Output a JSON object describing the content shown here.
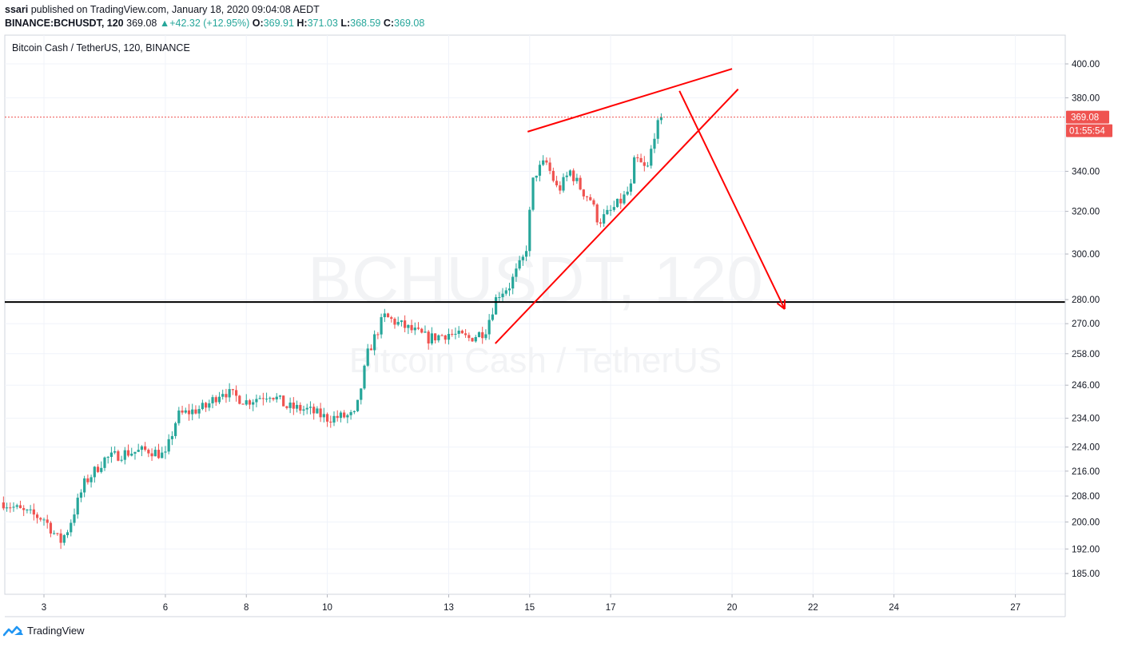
{
  "header": {
    "author": "ssari",
    "published_text": "published on TradingView.com, January 18, 2020 09:04:08 AEDT",
    "symbol_line": "BINANCE:BCHUSDT, 120",
    "last": "369.08",
    "change_arrow": "▲",
    "change": "+42.32 (+12.95%)",
    "o_label": "O:",
    "o_value": "369.91",
    "h_label": "H:",
    "h_value": "371.03",
    "l_label": "L:",
    "l_value": "368.59",
    "c_label": "C:",
    "c_value": "369.08"
  },
  "chart_title": "Bitcoin Cash / TetherUS, 120, BINANCE",
  "watermark": {
    "line1": "BCHUSDT, 120",
    "line2": "Bitcoin Cash / TetherUS"
  },
  "footer": {
    "brand": "TradingView",
    "logo_icon": "tradingview-logo-icon"
  },
  "colors": {
    "up": "#26a69a",
    "down": "#ef5350",
    "drawing": "#ff0000",
    "support": "#000000",
    "price_tag": "#ef5350"
  },
  "chart_data": {
    "type": "candlestick",
    "y_scale": "log",
    "ylim": [
      180,
      410
    ],
    "price_ticks": [
      "400.00",
      "380.00",
      "340.00",
      "320.00",
      "300.00",
      "280.00",
      "270.00",
      "258.00",
      "246.00",
      "234.00",
      "224.00",
      "216.00",
      "208.00",
      "200.00",
      "192.00",
      "185.00"
    ],
    "time_ticks": [
      {
        "day": 3,
        "label": "3"
      },
      {
        "day": 6,
        "label": "6"
      },
      {
        "day": 8,
        "label": "8"
      },
      {
        "day": 10,
        "label": "10"
      },
      {
        "day": 13,
        "label": "13"
      },
      {
        "day": 15,
        "label": "15"
      },
      {
        "day": 17,
        "label": "17"
      },
      {
        "day": 20,
        "label": "20"
      },
      {
        "day": 22,
        "label": "22"
      },
      {
        "day": 24,
        "label": "24"
      },
      {
        "day": 27,
        "label": "27"
      }
    ],
    "current_price": {
      "value": 369.08,
      "label": "369.08",
      "countdown": "01:55:54"
    },
    "support_level": 279,
    "anchors": [
      {
        "day": 2.0,
        "price": 206
      },
      {
        "day": 2.5,
        "price": 203
      },
      {
        "day": 3.0,
        "price": 201
      },
      {
        "day": 3.4,
        "price": 194
      },
      {
        "day": 3.6,
        "price": 198
      },
      {
        "day": 4.0,
        "price": 212
      },
      {
        "day": 4.5,
        "price": 220
      },
      {
        "day": 5.0,
        "price": 222
      },
      {
        "day": 5.6,
        "price": 223
      },
      {
        "day": 6.0,
        "price": 221
      },
      {
        "day": 6.3,
        "price": 235
      },
      {
        "day": 7.0,
        "price": 238
      },
      {
        "day": 7.4,
        "price": 244
      },
      {
        "day": 8.0,
        "price": 240
      },
      {
        "day": 8.6,
        "price": 243
      },
      {
        "day": 9.0,
        "price": 238
      },
      {
        "day": 9.5,
        "price": 237
      },
      {
        "day": 10.0,
        "price": 234
      },
      {
        "day": 10.7,
        "price": 235
      },
      {
        "day": 11.0,
        "price": 258
      },
      {
        "day": 11.4,
        "price": 273
      },
      {
        "day": 12.0,
        "price": 268
      },
      {
        "day": 12.5,
        "price": 264
      },
      {
        "day": 13.0,
        "price": 266
      },
      {
        "day": 13.5,
        "price": 264
      },
      {
        "day": 13.9,
        "price": 267
      },
      {
        "day": 14.2,
        "price": 282
      },
      {
        "day": 14.5,
        "price": 286
      },
      {
        "day": 14.9,
        "price": 300
      },
      {
        "day": 15.1,
        "price": 338
      },
      {
        "day": 15.4,
        "price": 345
      },
      {
        "day": 15.7,
        "price": 330
      },
      {
        "day": 16.0,
        "price": 340
      },
      {
        "day": 16.3,
        "price": 330
      },
      {
        "day": 16.5,
        "price": 326
      },
      {
        "day": 16.7,
        "price": 315
      },
      {
        "day": 17.0,
        "price": 320
      },
      {
        "day": 17.3,
        "price": 326
      },
      {
        "day": 17.5,
        "price": 332
      },
      {
        "day": 17.6,
        "price": 347
      },
      {
        "day": 17.9,
        "price": 340
      },
      {
        "day": 18.1,
        "price": 362
      },
      {
        "day": 18.3,
        "price": 369
      }
    ],
    "drawings": [
      {
        "name": "upper-trendline",
        "from": {
          "day": 14.95,
          "price": 361
        },
        "to": {
          "day": 20.0,
          "price": 397
        }
      },
      {
        "name": "lower-trendline",
        "from": {
          "day": 14.15,
          "price": 262
        },
        "to": {
          "day": 20.15,
          "price": 385
        }
      },
      {
        "name": "projection-arrow",
        "from": {
          "day": 18.7,
          "price": 384
        },
        "to": {
          "day": 21.3,
          "price": 276
        }
      }
    ]
  }
}
